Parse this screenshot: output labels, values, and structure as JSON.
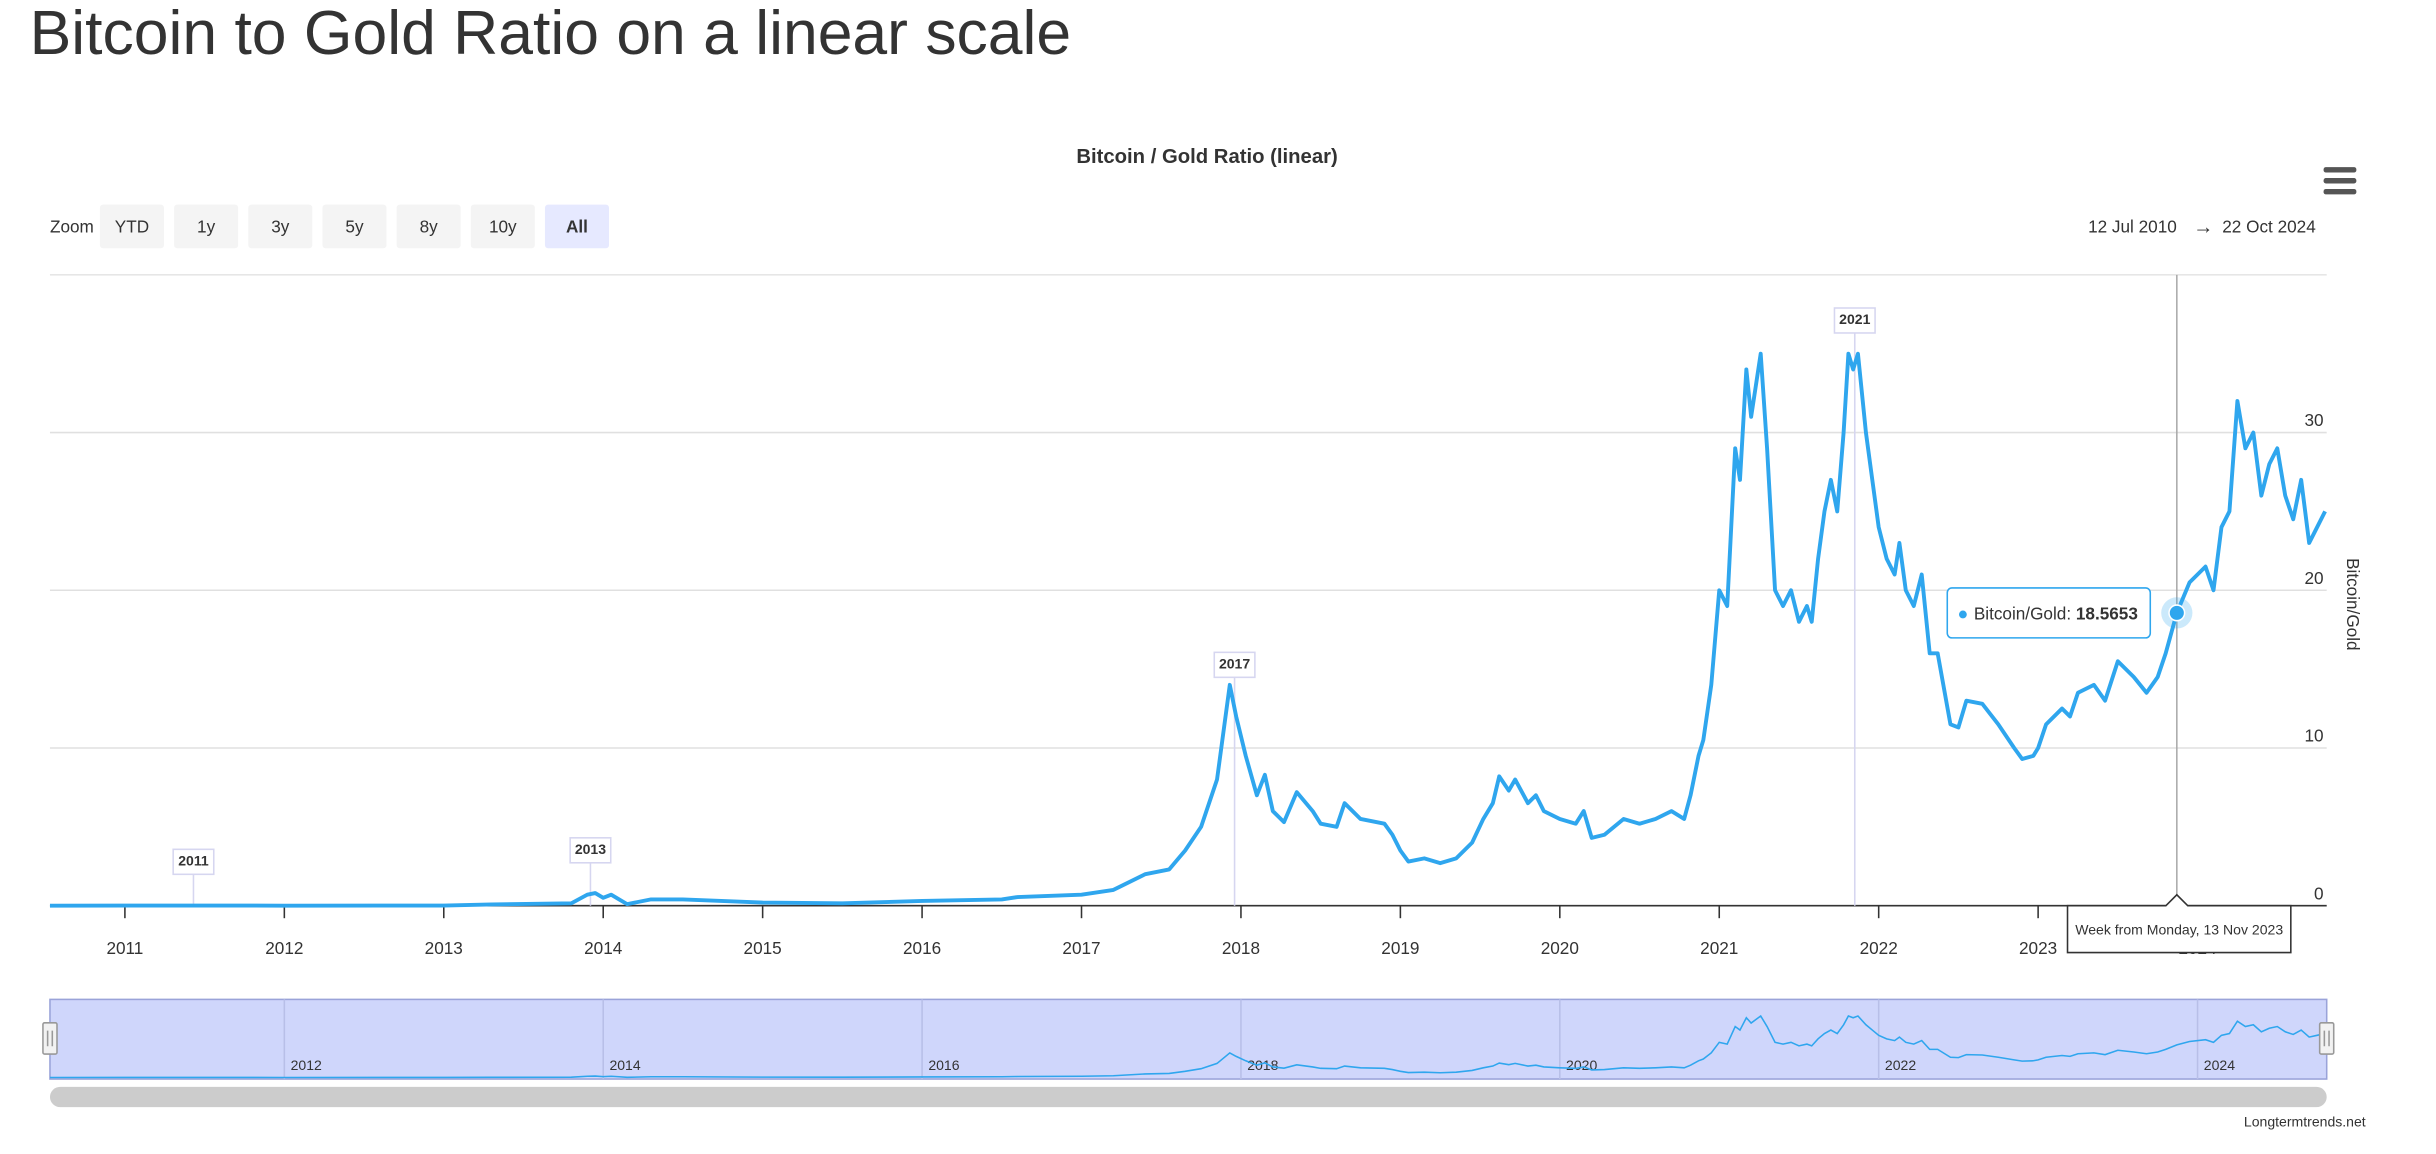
{
  "page": {
    "heading": "Bitcoin to Gold Ratio on a linear scale",
    "credit": "Longtermtrends.net"
  },
  "chart_data": {
    "type": "line",
    "title": "Bitcoin / Gold Ratio (linear)",
    "ylabel": "Bitcoin/Gold",
    "zoom": {
      "label": "Zoom",
      "buttons": [
        "YTD",
        "1y",
        "3y",
        "5y",
        "8y",
        "10y",
        "All"
      ],
      "selected_index": 6
    },
    "range": {
      "from": "12 Jul 2010",
      "separator": "→",
      "to": "22 Oct 2024"
    },
    "xlim": [
      2010.53,
      2024.81
    ],
    "xticks": [
      2011,
      2012,
      2013,
      2014,
      2015,
      2016,
      2017,
      2018,
      2019,
      2020,
      2021,
      2022,
      2023,
      2024
    ],
    "navigator_xticks": [
      2012,
      2014,
      2016,
      2018,
      2020,
      2022,
      2024
    ],
    "ylim": [
      0,
      40
    ],
    "yticks": [
      0,
      10,
      20,
      30
    ],
    "grid": true,
    "annotations": [
      {
        "label": "2011",
        "x": 2011.43
      },
      {
        "label": "2013",
        "x": 2013.92
      },
      {
        "label": "2017",
        "x": 2017.96
      },
      {
        "label": "2021",
        "x": 2021.85
      }
    ],
    "tooltip": {
      "x": 2023.87,
      "date_label": "Week from Monday, 13 Nov 2023"
    },
    "x": [
      2010.53,
      2011.0,
      2011.5,
      2012.0,
      2013.0,
      2013.3,
      2013.8,
      2013.9,
      2013.95,
      2014.0,
      2014.05,
      2014.1,
      2014.15,
      2014.3,
      2014.5,
      2015.0,
      2015.5,
      2016.0,
      2016.5,
      2016.6,
      2017.0,
      2017.2,
      2017.4,
      2017.55,
      2017.65,
      2017.75,
      2017.85,
      2017.93,
      2017.97,
      2018.03,
      2018.1,
      2018.15,
      2018.2,
      2018.27,
      2018.35,
      2018.45,
      2018.5,
      2018.6,
      2018.65,
      2018.75,
      2018.9,
      2018.95,
      2019.0,
      2019.05,
      2019.15,
      2019.25,
      2019.35,
      2019.45,
      2019.52,
      2019.58,
      2019.62,
      2019.68,
      2019.72,
      2019.8,
      2019.85,
      2019.9,
      2020.0,
      2020.1,
      2020.15,
      2020.2,
      2020.28,
      2020.4,
      2020.5,
      2020.6,
      2020.7,
      2020.78,
      2020.82,
      2020.87,
      2020.9,
      2020.95,
      2021.0,
      2021.05,
      2021.1,
      2021.13,
      2021.17,
      2021.2,
      2021.23,
      2021.26,
      2021.3,
      2021.35,
      2021.4,
      2021.45,
      2021.5,
      2021.55,
      2021.58,
      2021.62,
      2021.66,
      2021.7,
      2021.74,
      2021.78,
      2021.81,
      2021.84,
      2021.87,
      2021.92,
      2021.96,
      2022.0,
      2022.05,
      2022.1,
      2022.13,
      2022.17,
      2022.22,
      2022.27,
      2022.32,
      2022.37,
      2022.45,
      2022.5,
      2022.55,
      2022.65,
      2022.75,
      2022.85,
      2022.9,
      2022.97,
      2023.0,
      2023.05,
      2023.15,
      2023.2,
      2023.25,
      2023.35,
      2023.42,
      2023.5,
      2023.6,
      2023.68,
      2023.75,
      2023.8,
      2023.87,
      2023.95,
      2024.05,
      2024.1,
      2024.15,
      2024.2,
      2024.25,
      2024.3,
      2024.35,
      2024.4,
      2024.45,
      2024.5,
      2024.55,
      2024.6,
      2024.65,
      2024.7,
      2024.75,
      2024.8
    ],
    "series": [
      {
        "name": "Bitcoin/Gold",
        "color": "#2fa6ee",
        "values": [
          0.0,
          0.01,
          0.01,
          0.004,
          0.01,
          0.08,
          0.15,
          0.7,
          0.8,
          0.5,
          0.7,
          0.4,
          0.1,
          0.4,
          0.4,
          0.2,
          0.15,
          0.3,
          0.4,
          0.55,
          0.7,
          1.0,
          2.0,
          2.3,
          3.5,
          5.0,
          8.0,
          14,
          12,
          9.5,
          7.0,
          8.3,
          6.0,
          5.3,
          7.2,
          6.0,
          5.2,
          5.0,
          6.5,
          5.5,
          5.2,
          4.5,
          3.5,
          2.8,
          3.0,
          2.7,
          3.0,
          4.0,
          5.5,
          6.5,
          8.2,
          7.3,
          8.0,
          6.5,
          7.0,
          6.0,
          5.5,
          5.2,
          6.0,
          4.3,
          4.5,
          5.5,
          5.2,
          5.5,
          6.0,
          5.5,
          7.0,
          9.5,
          10.5,
          14,
          20,
          19,
          29,
          27,
          34,
          31,
          33,
          35,
          29,
          20,
          19,
          20,
          18,
          19,
          18,
          22,
          25,
          27,
          25,
          30,
          35,
          34,
          35,
          30,
          27,
          24,
          22,
          21,
          23,
          20,
          19,
          21,
          16,
          16,
          11.5,
          11.3,
          13,
          12.8,
          11.5,
          10,
          9.3,
          9.5,
          10,
          11.5,
          12.5,
          12,
          13.5,
          14,
          13,
          15.5,
          14.5,
          13.5,
          14.5,
          16,
          18.5653,
          20.5,
          21.5,
          20,
          24,
          25,
          32,
          29,
          30,
          26,
          28,
          29,
          26,
          24.5,
          27,
          23,
          24,
          25
        ]
      }
    ]
  }
}
